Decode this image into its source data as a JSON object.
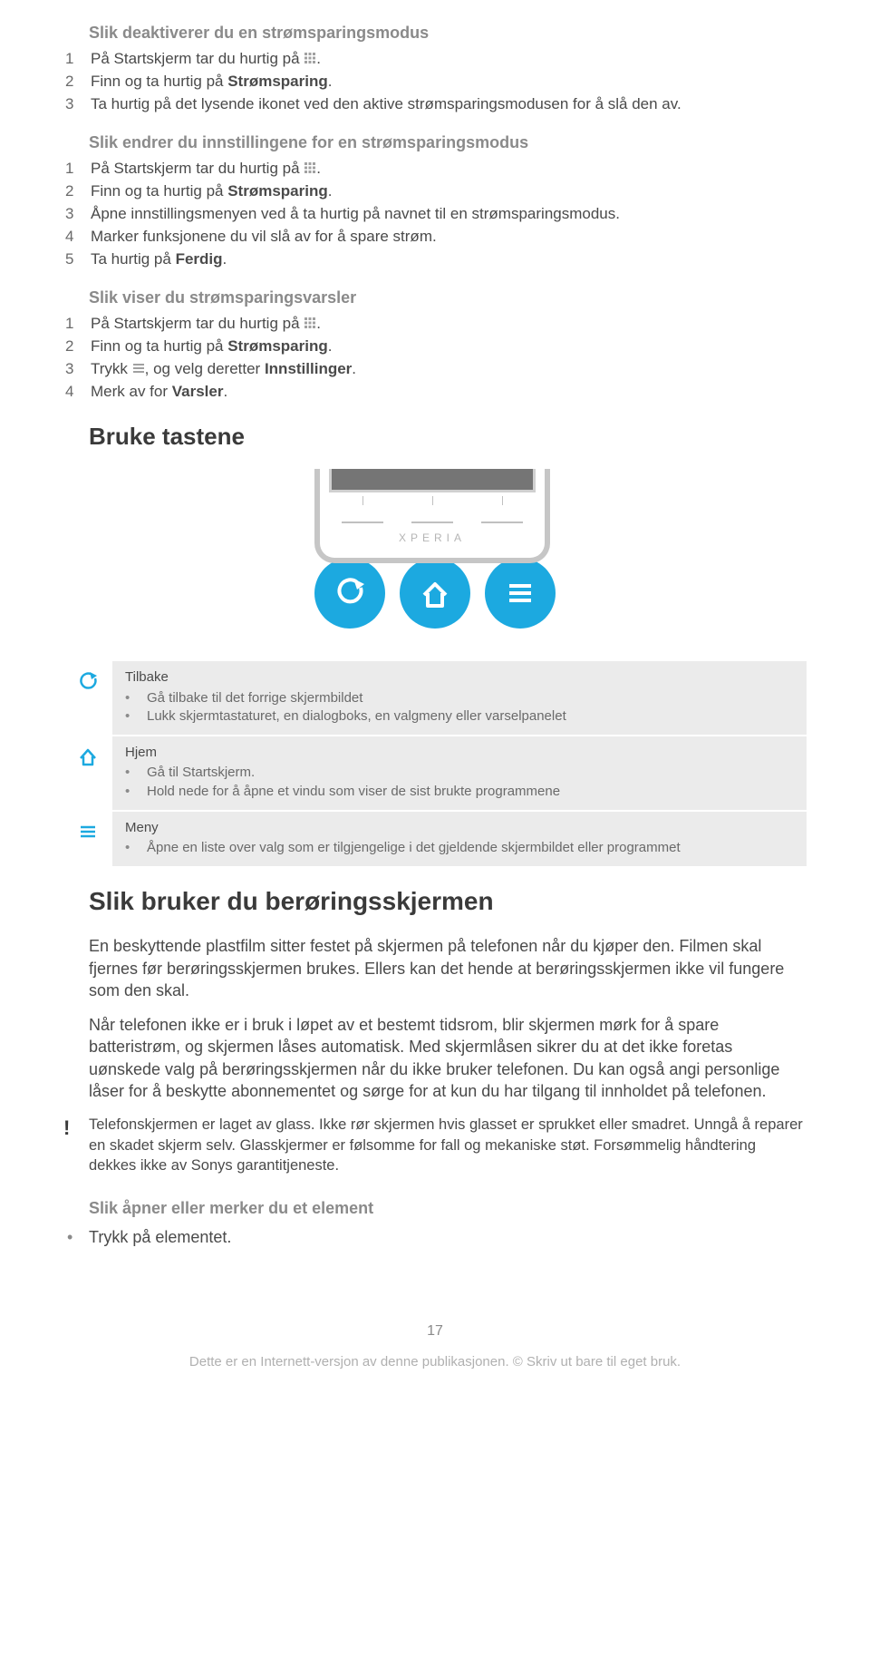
{
  "colors": {
    "accent_blue": "#1ca9e0",
    "text_body": "#4a4a4a",
    "text_muted": "#8a8a8a",
    "text_light": "#b0b0b0",
    "panel_bg": "#ebebeb",
    "phone_grey": "#c6c6c6"
  },
  "sec1": {
    "title": "Slik deaktiverer du en strømsparingsmodus",
    "steps": [
      {
        "n": "1",
        "pre": "På Startskjerm tar du hurtig på ",
        "icon": "grid",
        "post": "."
      },
      {
        "n": "2",
        "pre": "Finn og ta hurtig på ",
        "bold": "Strømsparing",
        "post": "."
      },
      {
        "n": "3",
        "pre": "Ta hurtig på det lysende ikonet ved den aktive strømsparingsmodusen for å slå den av."
      }
    ]
  },
  "sec2": {
    "title": "Slik endrer du innstillingene for en strømsparingsmodus",
    "steps": [
      {
        "n": "1",
        "pre": "På Startskjerm tar du hurtig på ",
        "icon": "grid",
        "post": "."
      },
      {
        "n": "2",
        "pre": "Finn og ta hurtig på ",
        "bold": "Strømsparing",
        "post": "."
      },
      {
        "n": "3",
        "pre": "Åpne innstillingsmenyen ved å ta hurtig på navnet til en strømsparingsmodus."
      },
      {
        "n": "4",
        "pre": "Marker funksjonene du vil slå av for å spare strøm."
      },
      {
        "n": "5",
        "pre": "Ta hurtig på ",
        "bold": "Ferdig",
        "post": "."
      }
    ]
  },
  "sec3": {
    "title": "Slik viser du strømsparingsvarsler",
    "steps": [
      {
        "n": "1",
        "pre": "På Startskjerm tar du hurtig på ",
        "icon": "grid",
        "post": "."
      },
      {
        "n": "2",
        "pre": "Finn og ta hurtig på ",
        "bold": "Strømsparing",
        "post": "."
      },
      {
        "n": "3",
        "pre": "Trykk ",
        "icon": "menu",
        "post": ", og velg deretter ",
        "bold": "Innstillinger",
        "post2": "."
      },
      {
        "n": "4",
        "pre": "Merk av for ",
        "bold": "Varsler",
        "post": "."
      }
    ]
  },
  "h_keys": "Bruke tastene",
  "phone": {
    "brand": "XPERIA"
  },
  "info": [
    {
      "icon": "back",
      "title": "Tilbake",
      "bullets": [
        "Gå tilbake til det forrige skjermbildet",
        "Lukk skjermtastaturet, en dialogboks, en valgmeny eller varselpanelet"
      ]
    },
    {
      "icon": "home",
      "title": "Hjem",
      "bullets": [
        "Gå til Startskjerm.",
        "Hold nede for å åpne et vindu som viser de sist brukte programmene"
      ]
    },
    {
      "icon": "menu",
      "title": "Meny",
      "bullets": [
        "Åpne en liste over valg som er tilgjengelige i det gjeldende skjermbildet eller programmet"
      ]
    }
  ],
  "h_touch": "Slik bruker du berøringsskjermen",
  "para1": "En beskyttende plastfilm sitter festet på skjermen på telefonen når du kjøper den. Filmen skal fjernes før berøringsskjermen brukes. Ellers kan det hende at berøringsskjermen ikke vil fungere som den skal.",
  "para2": "Når telefonen ikke er i bruk i løpet av et bestemt tidsrom, blir skjermen mørk for å spare batteristrøm, og skjermen låses automatisk. Med skjermlåsen sikrer du at det ikke foretas uønskede valg på berøringsskjermen når du ikke bruker telefonen. Du kan også angi personlige låser for å beskytte abonnementet og sørge for at kun du har tilgang til innholdet på telefonen.",
  "warn": "Telefonskjermen er laget av glass. Ikke rør skjermen hvis glasset er sprukket eller smadret. Unngå å reparer en skadet skjerm selv. Glasskjermer er følsomme for fall og mekaniske støt. Forsømmelig håndtering dekkes ikke av Sonys garantitjeneste.",
  "sec_open": {
    "title": "Slik åpner eller merker du et element",
    "bullet": "Trykk på elementet."
  },
  "page_num": "17",
  "footer": "Dette er en Internett-versjon av denne publikasjonen. © Skriv ut bare til eget bruk."
}
